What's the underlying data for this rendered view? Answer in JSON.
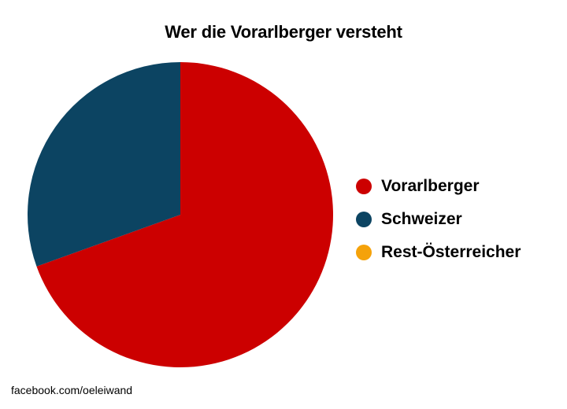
{
  "chart_data": {
    "type": "pie",
    "title": "Wer die Vorarlberger versteht",
    "categories": [
      "Vorarlberger",
      "Schweizer",
      "Rest-Österreicher"
    ],
    "values": [
      69.5,
      30.5,
      0
    ],
    "colors": [
      "#cc0000",
      "#0c4462",
      "#f5a20a"
    ],
    "start_angle_deg": 0,
    "direction": "clockwise",
    "legend_position": "right"
  },
  "footer": {
    "credit": "facebook.com/oeleiwand"
  }
}
